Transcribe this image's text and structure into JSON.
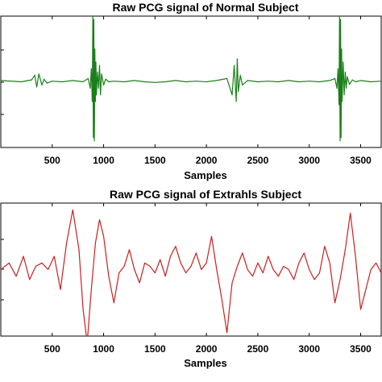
{
  "chart_data": [
    {
      "type": "line",
      "title": "Raw PCG signal of Normal Subject",
      "xlabel": "Samples",
      "ylabel": "",
      "x_ticks": [
        500,
        1000,
        1500,
        2000,
        2500,
        3000,
        3500
      ],
      "xlim": [
        0,
        3700
      ],
      "ylim": [
        -1,
        1
      ],
      "grid": false,
      "series": [
        {
          "color": "#1a7f1a",
          "x": [
            0,
            200,
            300,
            330,
            350,
            370,
            400,
            420,
            450,
            500,
            600,
            700,
            800,
            850,
            870,
            880,
            890,
            895,
            900,
            905,
            910,
            915,
            920,
            925,
            930,
            940,
            950,
            960,
            970,
            980,
            1000,
            1020,
            1050,
            1100,
            1200,
            1300,
            1400,
            1500,
            1600,
            1700,
            1800,
            1900,
            2000,
            2100,
            2200,
            2250,
            2270,
            2290,
            2300,
            2310,
            2330,
            2350,
            2400,
            2500,
            2600,
            2700,
            2800,
            2900,
            3000,
            3100,
            3200,
            3250,
            3270,
            3280,
            3290,
            3295,
            3300,
            3305,
            3310,
            3315,
            3320,
            3330,
            3340,
            3350,
            3360,
            3370,
            3390,
            3420,
            3450,
            3500,
            3600,
            3700
          ],
          "y": [
            0.02,
            0.0,
            0.03,
            0.1,
            -0.08,
            0.12,
            -0.05,
            0.04,
            -0.02,
            0.01,
            0.0,
            0.02,
            0.0,
            0.05,
            -0.1,
            0.2,
            -0.3,
            1.0,
            -0.85,
            0.95,
            -0.9,
            0.5,
            -0.3,
            0.3,
            -0.2,
            0.15,
            -0.1,
            0.25,
            -0.2,
            0.12,
            -0.05,
            0.04,
            0.0,
            0.01,
            0.0,
            0.02,
            0.0,
            -0.01,
            0.0,
            0.02,
            0.0,
            0.01,
            0.0,
            0.02,
            0.05,
            -0.2,
            0.25,
            -0.3,
            0.35,
            -0.15,
            0.1,
            -0.05,
            0.02,
            0.0,
            0.01,
            0.0,
            0.02,
            0.0,
            0.01,
            0.0,
            0.02,
            0.05,
            -0.1,
            0.2,
            -0.35,
            1.0,
            -0.9,
            0.95,
            -0.85,
            0.5,
            -0.3,
            0.3,
            -0.2,
            0.15,
            -0.1,
            0.08,
            -0.04,
            0.03,
            0.0,
            0.02,
            0.0,
            0.01
          ]
        }
      ]
    },
    {
      "type": "line",
      "title": "Raw PCG signal of Extrahls Subject",
      "xlabel": "Samples",
      "ylabel": "",
      "x_ticks": [
        500,
        1000,
        1500,
        2000,
        2500,
        3000,
        3500
      ],
      "xlim": [
        0,
        3700
      ],
      "ylim": [
        -1,
        1
      ],
      "grid": false,
      "series": [
        {
          "color": "#cc1f1f",
          "x": [
            0,
            80,
            150,
            220,
            280,
            340,
            400,
            460,
            520,
            580,
            640,
            700,
            760,
            800,
            840,
            880,
            920,
            960,
            1000,
            1050,
            1100,
            1150,
            1200,
            1250,
            1300,
            1350,
            1400,
            1450,
            1500,
            1550,
            1600,
            1650,
            1700,
            1750,
            1800,
            1850,
            1900,
            1950,
            2000,
            2050,
            2100,
            2150,
            2200,
            2250,
            2300,
            2350,
            2400,
            2450,
            2500,
            2550,
            2600,
            2650,
            2700,
            2750,
            2800,
            2850,
            2900,
            2950,
            3000,
            3050,
            3100,
            3150,
            3200,
            3250,
            3300,
            3350,
            3400,
            3450,
            3500,
            3550,
            3600,
            3650,
            3700
          ],
          "y": [
            0.0,
            0.1,
            -0.1,
            0.2,
            -0.15,
            0.05,
            0.1,
            0.0,
            0.2,
            -0.3,
            0.4,
            0.9,
            0.3,
            -0.6,
            -1.1,
            -0.3,
            0.4,
            0.75,
            0.5,
            -0.1,
            -0.5,
            -0.05,
            0.05,
            0.3,
            0.0,
            -0.2,
            0.1,
            0.05,
            -0.05,
            0.15,
            -0.1,
            0.2,
            0.35,
            0.1,
            -0.05,
            0.05,
            0.25,
            0.0,
            0.1,
            0.5,
            0.0,
            -0.45,
            -0.95,
            -0.2,
            0.05,
            0.25,
            0.0,
            -0.1,
            0.1,
            -0.05,
            0.2,
            0.0,
            -0.1,
            0.05,
            0.0,
            -0.15,
            0.1,
            0.25,
            0.0,
            -0.15,
            -0.05,
            0.35,
            0.1,
            -0.5,
            -0.15,
            0.3,
            0.85,
            0.2,
            -0.6,
            -0.3,
            0.0,
            0.1,
            -0.05
          ]
        }
      ]
    }
  ]
}
